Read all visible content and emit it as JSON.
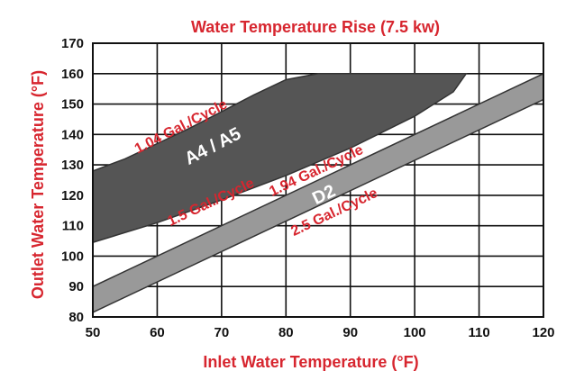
{
  "chart_data": {
    "type": "area",
    "title": "Water Temperature Rise (7.5 kw)",
    "xlabel": "Inlet  Water Temperature (°F)",
    "ylabel": "Outlet  Water Temperature (°F)",
    "xlim": [
      50,
      120
    ],
    "ylim": [
      80,
      170
    ],
    "xticks": [
      50,
      60,
      70,
      80,
      90,
      100,
      110,
      120
    ],
    "yticks": [
      80,
      90,
      100,
      110,
      120,
      130,
      140,
      150,
      160,
      170
    ],
    "grid": true,
    "bands": [
      {
        "name": "A4 / A5",
        "color": "#555555",
        "upper_label": "1.04 Gal./Cycle",
        "lower_label": "1.5 Gal./Cycle",
        "upper": [
          [
            50,
            128
          ],
          [
            55,
            132
          ],
          [
            60,
            137
          ],
          [
            65,
            142
          ],
          [
            70,
            147.5
          ],
          [
            75,
            153
          ],
          [
            80,
            158
          ],
          [
            85,
            160
          ],
          [
            108,
            160
          ]
        ],
        "lower": [
          [
            50,
            104.5
          ],
          [
            60,
            111
          ],
          [
            70,
            118.5
          ],
          [
            80,
            126.5
          ],
          [
            90,
            135.5
          ],
          [
            100,
            146
          ],
          [
            106,
            154
          ],
          [
            108,
            160
          ]
        ]
      },
      {
        "name": "D2",
        "color": "#999999",
        "upper_label": "1.94 Gal./Cycle",
        "lower_label": "2.5 Gal./Cycle",
        "upper": [
          [
            50,
            90
          ],
          [
            120,
            160
          ]
        ],
        "lower": [
          [
            50,
            81.5
          ],
          [
            120,
            151.5
          ]
        ]
      }
    ]
  },
  "colors": {
    "title": "#d7262f",
    "annotation": "#d7262f",
    "grid": "#111111",
    "plot_background": "#ffffff"
  }
}
